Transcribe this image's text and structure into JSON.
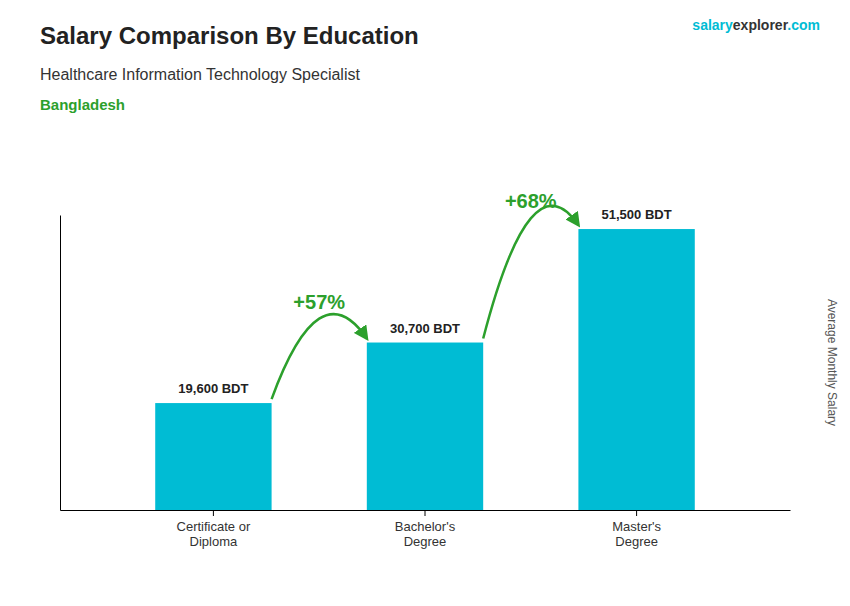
{
  "chart_data": {
    "type": "bar",
    "title": "Salary Comparison By Education",
    "subtitle": "Healthcare Information Technology Specialist",
    "y_label": "Average Monthly Salary",
    "categories": [
      "Certificate or\nDiploma",
      "Bachelor's\nDegree",
      "Master's\nDegree"
    ],
    "values": [
      19600,
      30700,
      51500
    ],
    "value_labels": [
      "19,600 BDT",
      "30,700 BDT",
      "51,500 BDT"
    ],
    "data_labels": true,
    "color": "#00bcd4",
    "ylim": [
      0,
      54075
    ],
    "tick_labels": "x",
    "grid": false,
    "annotations": [
      "+57%",
      "+68%",
      "Bangladesh",
      "salary",
      "explorer",
      ".com"
    ]
  }
}
